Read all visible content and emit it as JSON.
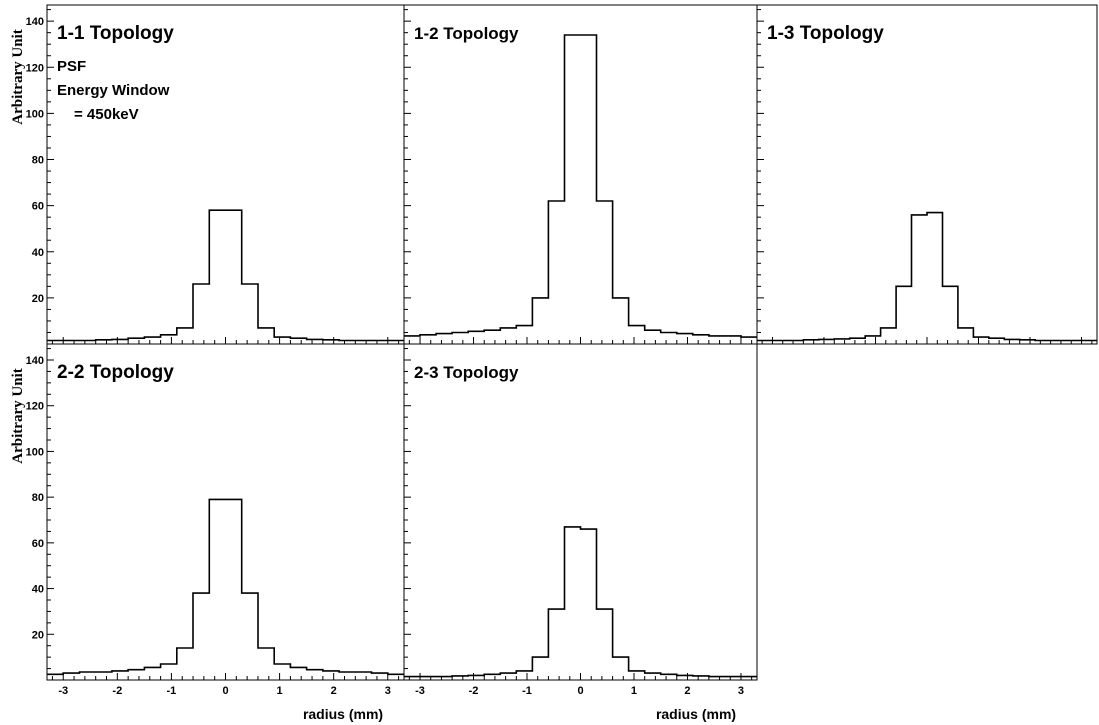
{
  "chart_data": [
    {
      "type": "histogram",
      "title": "1-1 Topology",
      "annotations": [
        "PSF",
        "Energy Window",
        "= 450keV"
      ],
      "ylabel": "Arbitrary Unit",
      "xlabel": "",
      "xlim": [
        -3.3,
        3.3
      ],
      "ylim": [
        0,
        147
      ],
      "x_ticks": [],
      "y_ticks": [
        "20",
        "40",
        "60",
        "80",
        "100",
        "120",
        "140"
      ],
      "bin_edges": [
        -3.3,
        -3.0,
        -2.7,
        -2.4,
        -2.1,
        -1.8,
        -1.5,
        -1.2,
        -0.9,
        -0.6,
        -0.3,
        0.0,
        0.3,
        0.6,
        0.9,
        1.2,
        1.5,
        1.8,
        2.1,
        2.4,
        2.7,
        3.0,
        3.3
      ],
      "values": [
        1.5,
        1.5,
        1.5,
        1.8,
        2,
        2.5,
        3,
        4,
        7,
        26,
        58,
        58,
        26,
        7,
        3,
        2.5,
        2,
        1.8,
        1.5,
        1.5,
        1.5,
        1.5
      ]
    },
    {
      "type": "histogram",
      "title": "1-2 Topology",
      "annotations": [],
      "ylabel": "",
      "xlabel": "",
      "xlim": [
        -3.3,
        3.3
      ],
      "ylim": [
        0,
        147
      ],
      "x_ticks": [],
      "y_ticks": [],
      "bin_edges": [
        -3.3,
        -3.0,
        -2.7,
        -2.4,
        -2.1,
        -1.8,
        -1.5,
        -1.2,
        -0.9,
        -0.6,
        -0.3,
        0.0,
        0.3,
        0.6,
        0.9,
        1.2,
        1.5,
        1.8,
        2.1,
        2.4,
        2.7,
        3.0,
        3.3
      ],
      "values": [
        3.5,
        4,
        4.5,
        5,
        5.5,
        6,
        7,
        8,
        20,
        62,
        134,
        134,
        62,
        20,
        8,
        6,
        5,
        4.5,
        4,
        3.5,
        3.5,
        3
      ]
    },
    {
      "type": "histogram",
      "title": "1-3 Topology",
      "annotations": [],
      "ylabel": "",
      "xlabel": "",
      "xlim": [
        -3.3,
        3.3
      ],
      "ylim": [
        0,
        147
      ],
      "x_ticks": [],
      "y_ticks": [],
      "bin_edges": [
        -3.3,
        -3.0,
        -2.7,
        -2.4,
        -2.1,
        -1.8,
        -1.5,
        -1.2,
        -0.9,
        -0.6,
        -0.3,
        0.0,
        0.3,
        0.6,
        0.9,
        1.2,
        1.5,
        1.8,
        2.1,
        2.4,
        2.7,
        3.0,
        3.3
      ],
      "values": [
        1.5,
        1.5,
        1.5,
        1.8,
        2,
        2.2,
        2.5,
        3.5,
        7,
        25,
        56,
        57,
        25,
        7,
        3,
        2.5,
        2,
        1.8,
        1.5,
        1.5,
        1.5,
        1.5
      ]
    },
    {
      "type": "histogram",
      "title": "2-2 Topology",
      "annotations": [],
      "ylabel": "Arbitrary Unit",
      "xlabel": "radius (mm)",
      "xlim": [
        -3.3,
        3.3
      ],
      "ylim": [
        0,
        147
      ],
      "x_ticks": [
        "-3",
        "-2",
        "-1",
        "0",
        "1",
        "2",
        "3"
      ],
      "y_ticks": [
        "20",
        "40",
        "60",
        "80",
        "100",
        "120",
        "140"
      ],
      "bin_edges": [
        -3.3,
        -3.0,
        -2.7,
        -2.4,
        -2.1,
        -1.8,
        -1.5,
        -1.2,
        -0.9,
        -0.6,
        -0.3,
        0.0,
        0.3,
        0.6,
        0.9,
        1.2,
        1.5,
        1.8,
        2.1,
        2.4,
        2.7,
        3.0,
        3.3
      ],
      "values": [
        2.5,
        3,
        3.5,
        3.5,
        4,
        4.5,
        5.5,
        7,
        14,
        38,
        79,
        79,
        38,
        14,
        7,
        5.5,
        4.5,
        4,
        3.5,
        3.5,
        3,
        2.5
      ]
    },
    {
      "type": "histogram",
      "title": "2-3 Topology",
      "annotations": [],
      "ylabel": "",
      "xlabel": "radius (mm)",
      "xlim": [
        -3.3,
        3.3
      ],
      "ylim": [
        0,
        147
      ],
      "x_ticks": [
        "-3",
        "-2",
        "-1",
        "0",
        "1",
        "2",
        "3"
      ],
      "y_ticks": [],
      "bin_edges": [
        -3.3,
        -3.0,
        -2.7,
        -2.4,
        -2.1,
        -1.8,
        -1.5,
        -1.2,
        -0.9,
        -0.6,
        -0.3,
        0.0,
        0.3,
        0.6,
        0.9,
        1.2,
        1.5,
        1.8,
        2.1,
        2.4,
        2.7,
        3.0,
        3.3
      ],
      "values": [
        1.5,
        1.5,
        1.5,
        1.8,
        2,
        2.5,
        3,
        4,
        10,
        31,
        67,
        66,
        31,
        10,
        4,
        3,
        2.5,
        2,
        1.8,
        1.5,
        1.5,
        1.5
      ]
    }
  ]
}
